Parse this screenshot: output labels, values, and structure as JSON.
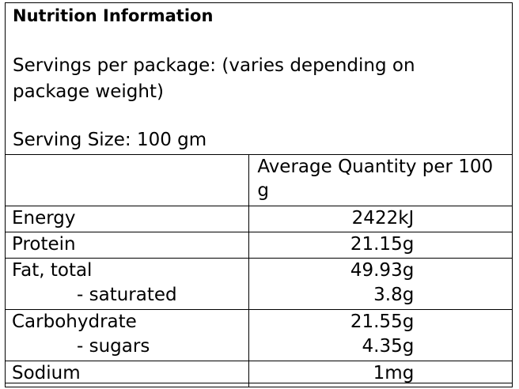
{
  "title": "Nutrition Information",
  "servings_per_package": "Servings per package: (varies depending on package weight)",
  "serving_size": "Serving Size: 100 gm",
  "table": {
    "header": [
      "",
      "Average Quantity per 100 g"
    ],
    "rows": [
      {
        "nutrient": "Energy",
        "value": "2422kJ"
      },
      {
        "nutrient": "Protein",
        "value": "21.15g"
      },
      {
        "nutrient": "Fat, total",
        "value": "49.93g",
        "sub": "- saturated",
        "sub_value": "3.8g"
      },
      {
        "nutrient": "Carbohydrate",
        "value": "21.55g",
        "sub": "- sugars",
        "sub_value": "4.35g"
      },
      {
        "nutrient": "Sodium",
        "value": "1mg"
      }
    ]
  }
}
